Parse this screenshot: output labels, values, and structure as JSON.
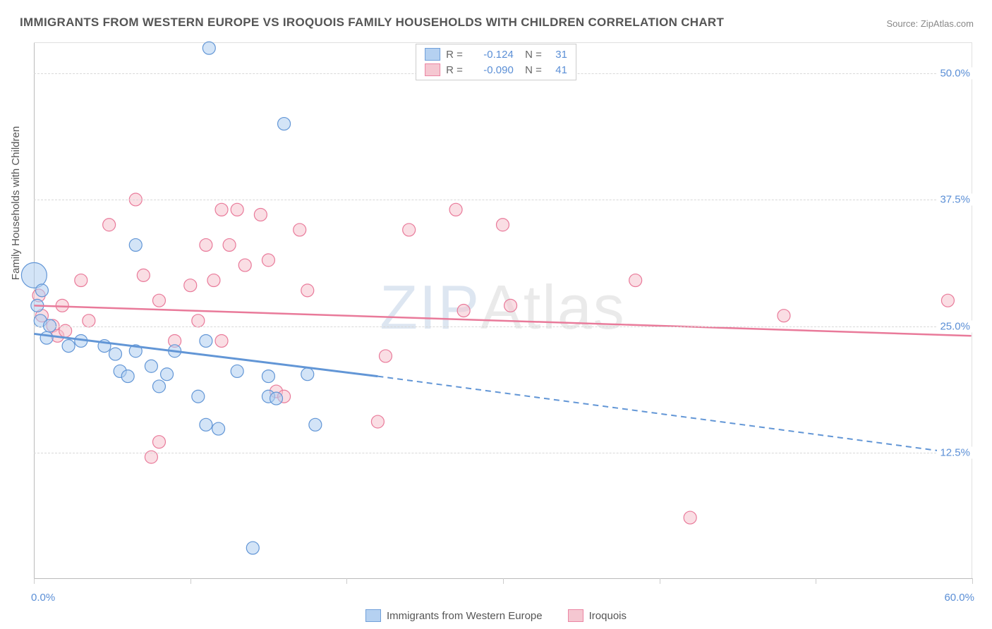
{
  "title": "IMMIGRANTS FROM WESTERN EUROPE VS IROQUOIS FAMILY HOUSEHOLDS WITH CHILDREN CORRELATION CHART",
  "source_prefix": "Source: ",
  "source_name": "ZipAtlas.com",
  "ylabel": "Family Households with Children",
  "watermark_z": "ZIP",
  "watermark_rest": "Atlas",
  "chart": {
    "type": "scatter",
    "xlim": [
      0,
      60
    ],
    "ylim": [
      0,
      53
    ],
    "xtick_positions": [
      0,
      10,
      20,
      30,
      40,
      50,
      60
    ],
    "xlim_labels": [
      "0.0%",
      "60.0%"
    ],
    "ytick_positions": [
      12.5,
      25.0,
      37.5,
      50.0
    ],
    "ytick_labels": [
      "12.5%",
      "25.0%",
      "37.5%",
      "50.0%"
    ],
    "grid_color": "#d8d8d8",
    "background_color": "#ffffff",
    "series": [
      {
        "name": "Immigrants from Western Europe",
        "color_fill": "#aecdf0",
        "color_stroke": "#6296d6",
        "fill_opacity": 0.55,
        "marker_radius": 9,
        "R": "-0.124",
        "N": "31",
        "trend": {
          "solid_from": [
            0,
            24.2
          ],
          "solid_to": [
            22,
            20.0
          ],
          "dashed_from": [
            22,
            20.0
          ],
          "dashed_to": [
            60,
            12.2
          ],
          "stroke_width": 3
        },
        "points": [
          {
            "x": 0.0,
            "y": 30.0,
            "r": 18
          },
          {
            "x": 0.2,
            "y": 27.0
          },
          {
            "x": 0.4,
            "y": 25.5
          },
          {
            "x": 11.2,
            "y": 52.5
          },
          {
            "x": 16.0,
            "y": 45.0
          },
          {
            "x": 6.5,
            "y": 33.0
          },
          {
            "x": 0.8,
            "y": 23.8
          },
          {
            "x": 1.0,
            "y": 25.0
          },
          {
            "x": 2.2,
            "y": 23.0
          },
          {
            "x": 3.0,
            "y": 23.5
          },
          {
            "x": 4.5,
            "y": 23.0
          },
          {
            "x": 5.2,
            "y": 22.2
          },
          {
            "x": 5.5,
            "y": 20.5
          },
          {
            "x": 6.0,
            "y": 20.0
          },
          {
            "x": 6.5,
            "y": 22.5
          },
          {
            "x": 7.5,
            "y": 21.0
          },
          {
            "x": 8.0,
            "y": 19.0
          },
          {
            "x": 8.5,
            "y": 20.2
          },
          {
            "x": 9.0,
            "y": 22.5
          },
          {
            "x": 10.5,
            "y": 18.0
          },
          {
            "x": 11.0,
            "y": 23.5
          },
          {
            "x": 11.0,
            "y": 15.2
          },
          {
            "x": 11.8,
            "y": 14.8
          },
          {
            "x": 13.0,
            "y": 20.5
          },
          {
            "x": 14.0,
            "y": 3.0
          },
          {
            "x": 15.0,
            "y": 18.0
          },
          {
            "x": 15.0,
            "y": 20.0
          },
          {
            "x": 15.5,
            "y": 17.8
          },
          {
            "x": 17.5,
            "y": 20.2
          },
          {
            "x": 18.0,
            "y": 15.2
          },
          {
            "x": 0.5,
            "y": 28.5
          }
        ]
      },
      {
        "name": "Iroquois",
        "color_fill": "#f5c2cd",
        "color_stroke": "#e97a9a",
        "fill_opacity": 0.55,
        "marker_radius": 9,
        "R": "-0.090",
        "N": "41",
        "trend": {
          "solid_from": [
            0,
            27.0
          ],
          "solid_to": [
            60,
            24.0
          ],
          "stroke_width": 2.5
        },
        "points": [
          {
            "x": 0.3,
            "y": 28.0
          },
          {
            "x": 0.5,
            "y": 26.0
          },
          {
            "x": 1.2,
            "y": 25.0
          },
          {
            "x": 1.5,
            "y": 24.0
          },
          {
            "x": 3.0,
            "y": 29.5
          },
          {
            "x": 3.5,
            "y": 25.5
          },
          {
            "x": 4.8,
            "y": 35.0
          },
          {
            "x": 6.5,
            "y": 37.5
          },
          {
            "x": 7.0,
            "y": 30.0
          },
          {
            "x": 7.5,
            "y": 12.0
          },
          {
            "x": 8.0,
            "y": 27.5
          },
          {
            "x": 8.0,
            "y": 13.5
          },
          {
            "x": 9.0,
            "y": 23.5
          },
          {
            "x": 10.0,
            "y": 29.0
          },
          {
            "x": 10.5,
            "y": 25.5
          },
          {
            "x": 11.0,
            "y": 33.0
          },
          {
            "x": 11.5,
            "y": 29.5
          },
          {
            "x": 12.0,
            "y": 36.5
          },
          {
            "x": 12.0,
            "y": 23.5
          },
          {
            "x": 12.5,
            "y": 33.0
          },
          {
            "x": 13.0,
            "y": 36.5
          },
          {
            "x": 13.5,
            "y": 31.0
          },
          {
            "x": 14.5,
            "y": 36.0
          },
          {
            "x": 15.0,
            "y": 31.5
          },
          {
            "x": 15.5,
            "y": 18.5
          },
          {
            "x": 16.0,
            "y": 18.0
          },
          {
            "x": 17.0,
            "y": 34.5
          },
          {
            "x": 17.5,
            "y": 28.5
          },
          {
            "x": 22.0,
            "y": 15.5
          },
          {
            "x": 22.5,
            "y": 22.0
          },
          {
            "x": 24.0,
            "y": 34.5
          },
          {
            "x": 27.0,
            "y": 36.5
          },
          {
            "x": 27.5,
            "y": 26.5
          },
          {
            "x": 30.0,
            "y": 35.0
          },
          {
            "x": 30.5,
            "y": 27.0
          },
          {
            "x": 38.5,
            "y": 29.5
          },
          {
            "x": 42.0,
            "y": 6.0
          },
          {
            "x": 48.0,
            "y": 26.0
          },
          {
            "x": 58.5,
            "y": 27.5
          },
          {
            "x": 2.0,
            "y": 24.5
          },
          {
            "x": 1.8,
            "y": 27.0
          }
        ]
      }
    ]
  }
}
